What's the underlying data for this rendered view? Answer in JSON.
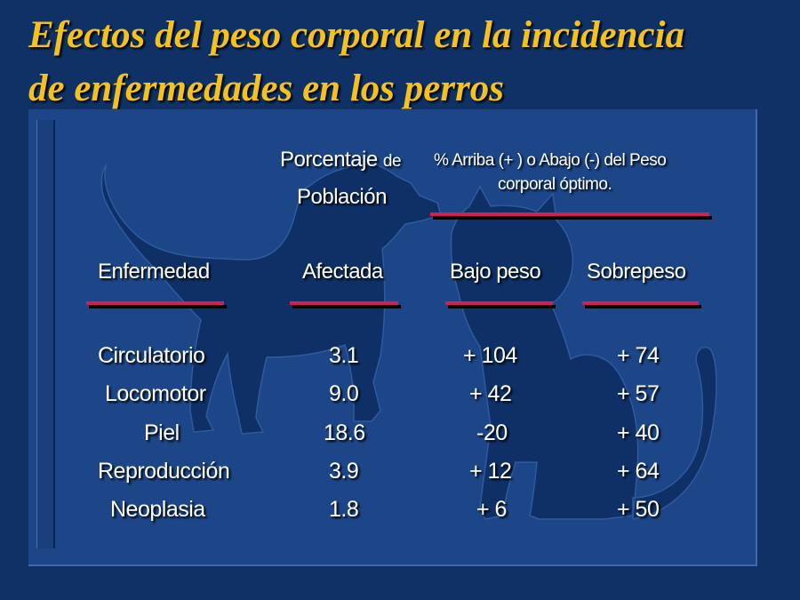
{
  "slide": {
    "title_line1": "Efectos del peso corporal en la incidencia",
    "title_line2": "de enfermedades en los perros"
  },
  "header": {
    "porcentaje": "Porcentaje",
    "de": "de",
    "poblacion": "Población",
    "peso_line1": "% Arriba (+ ) o Abajo (-) del Peso",
    "peso_line2": "corporal óptimo."
  },
  "columns": [
    "Enfermedad",
    "Afectada",
    "Bajo peso",
    "Sobrepeso"
  ],
  "rows": [
    {
      "disease": "Circulatorio",
      "affected": "3.1",
      "under": "+ 104",
      "over": "+ 74"
    },
    {
      "disease": "Locomotor",
      "affected": "9.0",
      "under": "+ 42",
      "over": "+ 57"
    },
    {
      "disease": "Piel",
      "affected": "18.6",
      "under": "-20",
      "over": "+ 40"
    },
    {
      "disease": "Reproducción",
      "affected": "3.9",
      "under": "+ 12",
      "over": "+ 64"
    },
    {
      "disease": "Neoplasia",
      "affected": "1.8",
      "under": "+ 6",
      "over": "+ 50"
    }
  ],
  "colors": {
    "background": "#0f3165",
    "panel": "#1d4689",
    "silhouette": "#0e3066",
    "title": "#f4c21a",
    "rule": "#d41f52"
  },
  "icons": [
    "dog-silhouette-icon",
    "cat-silhouette-icon"
  ]
}
